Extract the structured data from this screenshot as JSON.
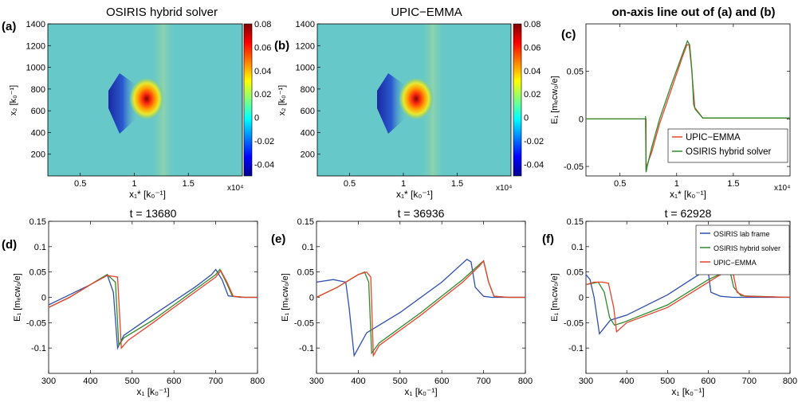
{
  "panels_top": [
    {
      "letter": "(a)",
      "title": "OSIRIS hybrid solver",
      "xlabel": "x₁* [k₀⁻¹]",
      "ylabel": "x₂ [k₀⁻¹]",
      "xticks": [
        "0.5",
        "1",
        "1.5"
      ],
      "xexp": "x10⁴",
      "yticks": [
        "200",
        "400",
        "600",
        "800",
        "1000",
        "1200",
        "1400"
      ],
      "cbar_ticks": [
        "0.08",
        "0.06",
        "0.04",
        "0.02",
        "0",
        "-0.02",
        "-0.04"
      ]
    },
    {
      "letter": "(b)",
      "title": "UPIC−EMMA",
      "xlabel": "x₁* [k₀⁻¹]",
      "ylabel": "x₂ [k₀⁻¹]",
      "xticks": [
        "0.5",
        "1",
        "1.5"
      ],
      "xexp": "x10⁴",
      "yticks": [
        "200",
        "400",
        "600",
        "800",
        "1000",
        "1200",
        "1400"
      ],
      "cbar_ticks": [
        "0.08",
        "0.06",
        "0.04",
        "0.02",
        "0",
        "-0.02",
        "-0.04"
      ]
    }
  ],
  "chart_data": [
    {
      "type": "heatmap",
      "panel": "(a)",
      "title": "OSIRIS hybrid solver",
      "xlabel": "x1* [k0^-1]",
      "ylabel": "x2 [k0^-1]",
      "xlim": [
        2000,
        20000
      ],
      "ylim": [
        0,
        1400
      ],
      "x_scale_label": "x10^4",
      "colorbar_range": [
        -0.05,
        0.08
      ],
      "features": [
        {
          "kind": "negative wedge",
          "x_range": [
            7300,
            8800
          ],
          "y_range": [
            520,
            900
          ],
          "min_value": -0.05
        },
        {
          "kind": "positive peak",
          "x_center": 11000,
          "y_center": 700,
          "max_value": 0.08
        }
      ]
    },
    {
      "type": "heatmap",
      "panel": "(b)",
      "title": "UPIC-EMMA",
      "xlabel": "x1* [k0^-1]",
      "ylabel": "x2 [k0^-1]",
      "xlim": [
        2000,
        20000
      ],
      "ylim": [
        0,
        1400
      ],
      "x_scale_label": "x10^4",
      "colorbar_range": [
        -0.05,
        0.08
      ],
      "features": [
        {
          "kind": "negative wedge",
          "x_range": [
            7300,
            8800
          ],
          "y_range": [
            520,
            900
          ],
          "min_value": -0.05
        },
        {
          "kind": "positive peak",
          "x_center": 11000,
          "y_center": 700,
          "max_value": 0.08
        }
      ]
    },
    {
      "type": "line",
      "panel": "(c)",
      "title": "on-axis line out of (a) and (b)",
      "xlabel": "x1* [k0^-1]",
      "ylabel": "E1 [me c w0/e]",
      "xlim": [
        2000,
        20000
      ],
      "ylim": [
        -0.06,
        0.1
      ],
      "x_scale_label": "x10^4",
      "xticks": [
        5000,
        10000,
        15000
      ],
      "yticks": [
        -0.05,
        0,
        0.05
      ],
      "legend": "bottom-right",
      "series": [
        {
          "name": "UPIC−EMMA",
          "color": "#e8432b",
          "x": [
            2000,
            7300,
            7300,
            7350,
            7400,
            7800,
            8500,
            9500,
            10500,
            10900,
            11100,
            11300,
            11600,
            12300,
            20000
          ],
          "y": [
            0,
            0,
            -0.055,
            -0.052,
            -0.048,
            -0.035,
            -0.005,
            0.03,
            0.065,
            0.078,
            0.078,
            0.055,
            0.012,
            0.001,
            0.001
          ]
        },
        {
          "name": "OSIRIS hybrid solver",
          "color": "#2e8b2e",
          "x": [
            2000,
            7250,
            7250,
            7300,
            7400,
            7800,
            8500,
            9500,
            10500,
            10950,
            11150,
            11350,
            11500,
            11650,
            12300,
            20000
          ],
          "y": [
            0,
            0,
            0.003,
            -0.056,
            -0.05,
            -0.03,
            0.0,
            0.035,
            0.068,
            0.082,
            0.078,
            0.05,
            0.015,
            0.01,
            0.001,
            0.001
          ]
        }
      ]
    },
    {
      "type": "line",
      "panel": "(d)",
      "title": "t = 13680",
      "xlabel": "x1 [k0^-1]",
      "ylabel": "E1 [me c w0/e]",
      "xlim": [
        300,
        800
      ],
      "ylim": [
        -0.15,
        0.15
      ],
      "xticks": [
        300,
        400,
        500,
        600,
        700,
        800
      ],
      "yticks": [
        -0.1,
        -0.05,
        0,
        0.05,
        0.1,
        0.15
      ],
      "series": [
        {
          "name": "OSIRIS lab frame",
          "color": "#2f4fb0",
          "x": [
            300,
            350,
            400,
            440,
            455,
            465,
            480,
            550,
            650,
            690,
            700,
            715,
            730,
            760,
            800
          ],
          "y": [
            -0.015,
            0.005,
            0.025,
            0.045,
            0.01,
            -0.1,
            -0.075,
            -0.035,
            0.02,
            0.045,
            0.055,
            0.035,
            0.003,
            0,
            0
          ]
        },
        {
          "name": "OSIRIS hybrid solver",
          "color": "#2e8b2e",
          "x": [
            300,
            350,
            400,
            440,
            460,
            468,
            480,
            550,
            650,
            700,
            710,
            725,
            740,
            770,
            800
          ],
          "y": [
            -0.02,
            0.0,
            0.025,
            0.045,
            0.03,
            -0.095,
            -0.08,
            -0.045,
            0.015,
            0.045,
            0.055,
            0.03,
            0.002,
            0,
            0
          ]
        },
        {
          "name": "UPIC−EMMA",
          "color": "#e8432b",
          "x": [
            300,
            350,
            400,
            440,
            465,
            474,
            490,
            550,
            650,
            700,
            712,
            727,
            742,
            770,
            800
          ],
          "y": [
            -0.02,
            0.0,
            0.025,
            0.043,
            0.04,
            -0.1,
            -0.085,
            -0.05,
            0.01,
            0.04,
            0.053,
            0.03,
            0.002,
            0,
            0
          ]
        }
      ]
    },
    {
      "type": "line",
      "panel": "(e)",
      "title": "t = 36936",
      "xlabel": "x1 [k0^-1]",
      "ylabel": "E1 [me c w0/e]",
      "xlim": [
        300,
        800
      ],
      "ylim": [
        -0.15,
        0.15
      ],
      "xticks": [
        300,
        400,
        500,
        600,
        700,
        800
      ],
      "yticks": [
        -0.1,
        -0.05,
        0,
        0.05,
        0.1,
        0.15
      ],
      "series": [
        {
          "name": "OSIRIS lab frame",
          "color": "#2f4fb0",
          "x": [
            300,
            340,
            370,
            378,
            390,
            420,
            500,
            600,
            660,
            670,
            680,
            700,
            720,
            800
          ],
          "y": [
            0.03,
            0.035,
            0.03,
            -0.02,
            -0.115,
            -0.07,
            -0.03,
            0.03,
            0.075,
            0.07,
            0.02,
            0.002,
            0,
            0
          ]
        },
        {
          "name": "OSIRIS hybrid solver",
          "color": "#2e8b2e",
          "x": [
            300,
            350,
            400,
            415,
            425,
            432,
            450,
            550,
            650,
            690,
            700,
            712,
            725,
            760,
            800
          ],
          "y": [
            0.0,
            0.02,
            0.045,
            0.05,
            0.03,
            -0.11,
            -0.09,
            -0.03,
            0.035,
            0.065,
            0.072,
            0.03,
            0.002,
            0,
            0
          ]
        },
        {
          "name": "UPIC−EMMA",
          "color": "#e8432b",
          "x": [
            300,
            350,
            400,
            420,
            430,
            436,
            450,
            550,
            650,
            690,
            700,
            712,
            725,
            760,
            800
          ],
          "y": [
            0.0,
            0.02,
            0.045,
            0.05,
            0.04,
            -0.115,
            -0.095,
            -0.035,
            0.03,
            0.062,
            0.072,
            0.03,
            0.002,
            0,
            0
          ]
        }
      ]
    },
    {
      "type": "line",
      "panel": "(f)",
      "title": "t = 62928",
      "xlabel": "x1 [k0^-1]",
      "ylabel": "E1 [me c w0/e]",
      "xlim": [
        300,
        800
      ],
      "ylim": [
        -0.15,
        0.15
      ],
      "xticks": [
        300,
        400,
        500,
        600,
        700,
        800
      ],
      "yticks": [
        -0.1,
        -0.05,
        0,
        0.05,
        0.1,
        0.15
      ],
      "legend": "top-right",
      "series": [
        {
          "name": "OSIRIS lab frame",
          "color": "#2f4fb0",
          "x": [
            300,
            310,
            320,
            333,
            345,
            360,
            400,
            500,
            590,
            600,
            606,
            612,
            630,
            660,
            800
          ],
          "y": [
            0.045,
            0.035,
            0.0,
            -0.072,
            -0.06,
            -0.045,
            -0.035,
            0.005,
            0.052,
            0.048,
            0.01,
            0.008,
            0.002,
            0,
            0
          ]
        },
        {
          "name": "OSIRIS hybrid solver",
          "color": "#2e8b2e",
          "x": [
            300,
            330,
            345,
            358,
            370,
            390,
            500,
            600,
            640,
            652,
            662,
            680,
            800
          ],
          "y": [
            0.025,
            0.03,
            0.01,
            -0.04,
            -0.055,
            -0.05,
            -0.015,
            0.035,
            0.05,
            0.055,
            0.02,
            0.003,
            0
          ]
        },
        {
          "name": "UPIC−EMMA",
          "color": "#e8432b",
          "x": [
            300,
            320,
            340,
            355,
            368,
            375,
            400,
            500,
            600,
            640,
            650,
            660,
            670,
            690,
            800
          ],
          "y": [
            0.025,
            0.03,
            0.03,
            0.028,
            -0.02,
            -0.068,
            -0.05,
            -0.02,
            0.03,
            0.05,
            0.055,
            0.05,
            0.01,
            0.002,
            0
          ]
        }
      ]
    }
  ]
}
